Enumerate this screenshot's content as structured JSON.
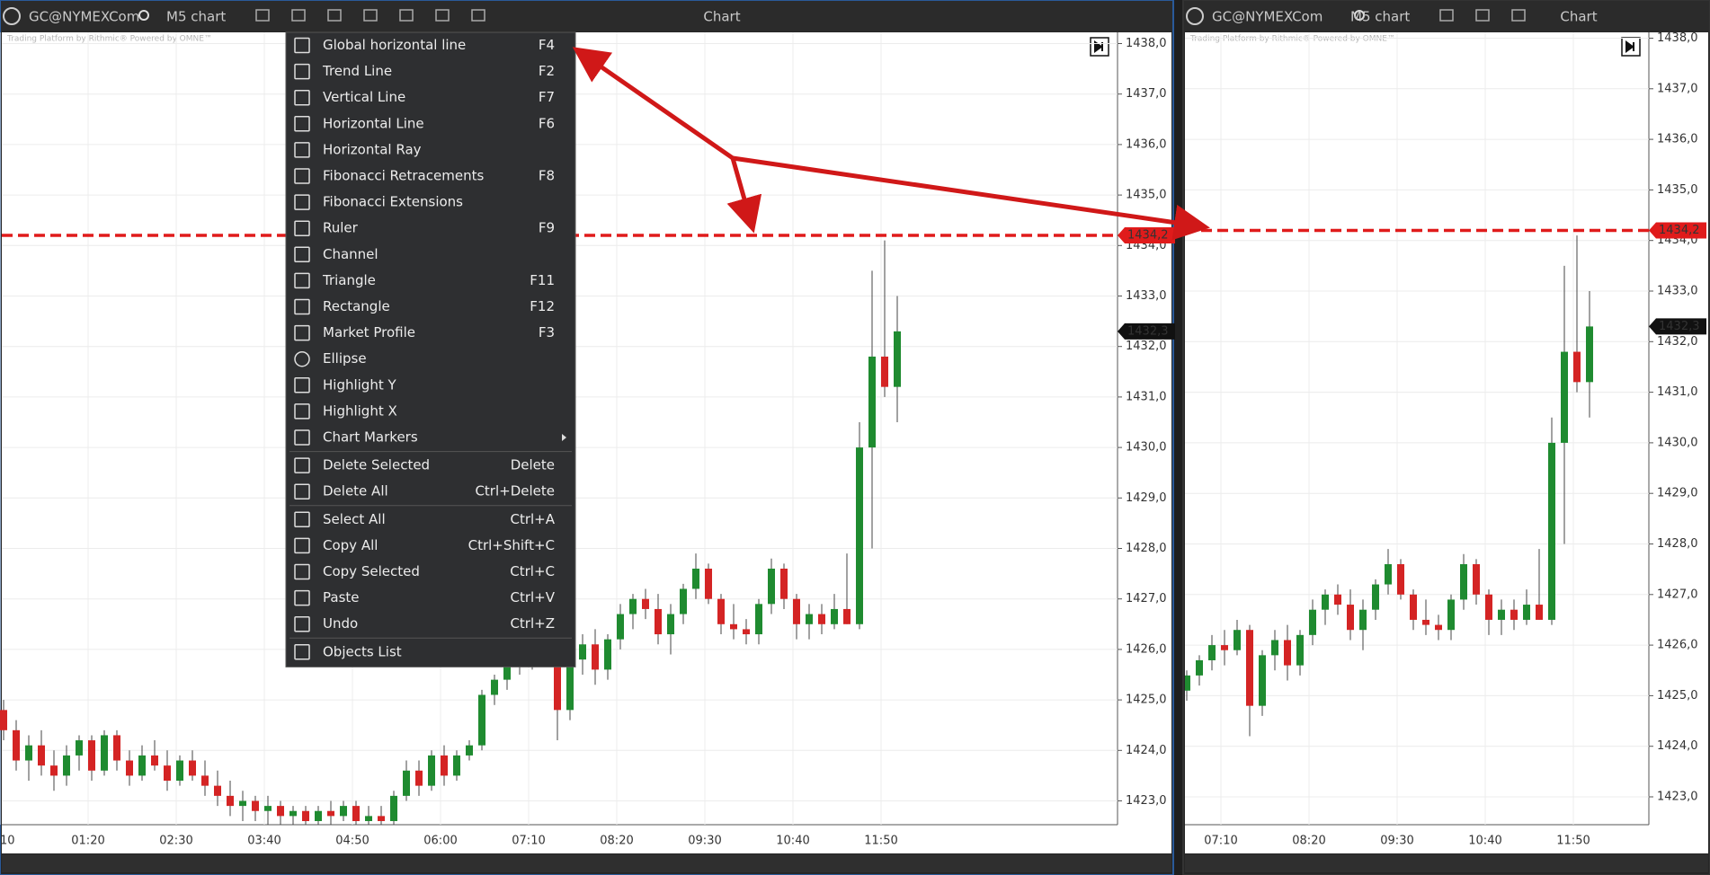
{
  "panels": [
    {
      "toolbar": {
        "symbol": "GC@NYMEXCom",
        "timeframe": "M5 chart",
        "title": "Chart"
      },
      "watermark": "Trading Platform by Rithmic® Powered by OMNE™",
      "xticks": [
        "10",
        "01:20",
        "02:30",
        "03:40",
        "04:50",
        "06:00",
        "07:10",
        "08:20",
        "09:30",
        "10:40",
        "11:50"
      ]
    },
    {
      "toolbar": {
        "symbol": "GC@NYMEXCom",
        "timeframe": "M5 chart",
        "title": "Chart"
      },
      "watermark": "Trading Platform by Rithmic® Powered by OMNE™",
      "xticks": [
        "07:10",
        "08:20",
        "09:30",
        "10:40",
        "11:50"
      ]
    }
  ],
  "chart": {
    "yticks": [
      {
        "value": 1423,
        "label": "1423,0"
      },
      {
        "value": 1424,
        "label": "1424,0"
      },
      {
        "value": 1425,
        "label": "1425,0"
      },
      {
        "value": 1426,
        "label": "1426,0"
      },
      {
        "value": 1427,
        "label": "1427,0"
      },
      {
        "value": 1428,
        "label": "1428,0"
      },
      {
        "value": 1429,
        "label": "1429,0"
      },
      {
        "value": 1430,
        "label": "1430,0"
      },
      {
        "value": 1431,
        "label": "1431,0"
      },
      {
        "value": 1432,
        "label": "1432,0"
      },
      {
        "value": 1433,
        "label": "1433,0"
      },
      {
        "value": 1434,
        "label": "1434,0"
      },
      {
        "value": 1435,
        "label": "1435,0"
      },
      {
        "value": 1436,
        "label": "1436,0"
      },
      {
        "value": 1437,
        "label": "1437,0"
      },
      {
        "value": 1438,
        "label": "1438,0"
      }
    ],
    "hline": {
      "value": 1434.2,
      "label": "1434,2"
    },
    "last_price": {
      "value": 1432.3,
      "label": "1432,3"
    },
    "candles": [
      [
        1424.8,
        1425.0,
        1424.2,
        1424.4
      ],
      [
        1424.4,
        1424.6,
        1423.6,
        1423.8
      ],
      [
        1423.8,
        1424.3,
        1423.4,
        1424.1
      ],
      [
        1424.1,
        1424.4,
        1423.5,
        1423.7
      ],
      [
        1423.7,
        1424.0,
        1423.2,
        1423.5
      ],
      [
        1423.5,
        1424.1,
        1423.3,
        1423.9
      ],
      [
        1423.9,
        1424.3,
        1423.6,
        1424.2
      ],
      [
        1424.2,
        1424.3,
        1423.4,
        1423.6
      ],
      [
        1423.6,
        1424.4,
        1423.5,
        1424.3
      ],
      [
        1424.3,
        1424.4,
        1423.6,
        1423.8
      ],
      [
        1423.8,
        1424.0,
        1423.3,
        1423.5
      ],
      [
        1423.5,
        1424.1,
        1423.4,
        1423.9
      ],
      [
        1423.9,
        1424.2,
        1423.6,
        1423.7
      ],
      [
        1423.7,
        1424.0,
        1423.2,
        1423.4
      ],
      [
        1423.4,
        1423.9,
        1423.3,
        1423.8
      ],
      [
        1423.8,
        1424.0,
        1423.4,
        1423.5
      ],
      [
        1423.5,
        1423.8,
        1423.1,
        1423.3
      ],
      [
        1423.3,
        1423.6,
        1422.9,
        1423.1
      ],
      [
        1423.1,
        1423.4,
        1422.7,
        1422.9
      ],
      [
        1422.9,
        1423.2,
        1422.6,
        1423.0
      ],
      [
        1423.0,
        1423.1,
        1422.6,
        1422.8
      ],
      [
        1422.8,
        1423.1,
        1422.5,
        1422.9
      ],
      [
        1422.9,
        1423.0,
        1422.5,
        1422.7
      ],
      [
        1422.7,
        1422.9,
        1422.4,
        1422.8
      ],
      [
        1422.8,
        1422.9,
        1422.5,
        1422.6
      ],
      [
        1422.6,
        1422.9,
        1422.4,
        1422.8
      ],
      [
        1422.8,
        1423.0,
        1422.5,
        1422.7
      ],
      [
        1422.7,
        1423.0,
        1422.6,
        1422.9
      ],
      [
        1422.9,
        1423.0,
        1422.5,
        1422.6
      ],
      [
        1422.6,
        1422.9,
        1422.4,
        1422.7
      ],
      [
        1422.7,
        1422.9,
        1422.5,
        1422.6
      ],
      [
        1422.6,
        1423.2,
        1422.5,
        1423.1
      ],
      [
        1423.1,
        1423.8,
        1423.0,
        1423.6
      ],
      [
        1423.6,
        1423.8,
        1423.1,
        1423.3
      ],
      [
        1423.3,
        1424.0,
        1423.2,
        1423.9
      ],
      [
        1423.9,
        1424.1,
        1423.3,
        1423.5
      ],
      [
        1423.5,
        1424.0,
        1423.4,
        1423.9
      ],
      [
        1423.9,
        1424.2,
        1423.8,
        1424.1
      ],
      [
        1424.1,
        1425.2,
        1424.0,
        1425.1
      ],
      [
        1425.1,
        1425.5,
        1424.9,
        1425.4
      ],
      [
        1425.4,
        1425.8,
        1425.2,
        1425.7
      ],
      [
        1425.7,
        1426.2,
        1425.5,
        1426.0
      ],
      [
        1426.0,
        1426.3,
        1425.6,
        1425.9
      ],
      [
        1425.9,
        1426.5,
        1425.8,
        1426.3
      ],
      [
        1426.3,
        1426.4,
        1424.2,
        1424.8
      ],
      [
        1424.8,
        1425.9,
        1424.6,
        1425.8
      ],
      [
        1425.8,
        1426.3,
        1425.5,
        1426.1
      ],
      [
        1426.1,
        1426.4,
        1425.3,
        1425.6
      ],
      [
        1425.6,
        1426.3,
        1425.4,
        1426.2
      ],
      [
        1426.2,
        1426.9,
        1426.0,
        1426.7
      ],
      [
        1426.7,
        1427.1,
        1426.4,
        1427.0
      ],
      [
        1427.0,
        1427.2,
        1426.6,
        1426.8
      ],
      [
        1426.8,
        1427.1,
        1426.1,
        1426.3
      ],
      [
        1426.3,
        1426.9,
        1425.9,
        1426.7
      ],
      [
        1426.7,
        1427.3,
        1426.5,
        1427.2
      ],
      [
        1427.2,
        1427.9,
        1427.0,
        1427.6
      ],
      [
        1427.6,
        1427.7,
        1426.9,
        1427.0
      ],
      [
        1427.0,
        1427.1,
        1426.3,
        1426.5
      ],
      [
        1426.5,
        1426.9,
        1426.2,
        1426.4
      ],
      [
        1426.4,
        1426.6,
        1426.1,
        1426.3
      ],
      [
        1426.3,
        1427.0,
        1426.1,
        1426.9
      ],
      [
        1426.9,
        1427.8,
        1426.7,
        1427.6
      ],
      [
        1427.6,
        1427.7,
        1426.8,
        1427.0
      ],
      [
        1427.0,
        1427.1,
        1426.2,
        1426.5
      ],
      [
        1426.5,
        1426.9,
        1426.2,
        1426.7
      ],
      [
        1426.7,
        1426.9,
        1426.3,
        1426.5
      ],
      [
        1426.5,
        1427.1,
        1426.4,
        1426.8
      ],
      [
        1426.8,
        1427.9,
        1426.5,
        1426.5
      ],
      [
        1426.5,
        1430.5,
        1426.4,
        1430.0
      ],
      [
        1430.0,
        1433.5,
        1428.0,
        1431.8
      ],
      [
        1431.8,
        1434.1,
        1431.0,
        1431.2
      ],
      [
        1431.2,
        1433.0,
        1430.5,
        1432.3
      ]
    ]
  },
  "menu": {
    "items": [
      {
        "label": "Global horizontal line",
        "shortcut": "F4"
      },
      {
        "label": "Trend Line",
        "shortcut": "F2"
      },
      {
        "label": "Vertical Line",
        "shortcut": "F7"
      },
      {
        "label": "Horizontal Line",
        "shortcut": "F6"
      },
      {
        "label": "Horizontal Ray"
      },
      {
        "label": "Fibonacci Retracements",
        "shortcut": "F8"
      },
      {
        "label": "Fibonacci Extensions"
      },
      {
        "label": "Ruler",
        "shortcut": "F9"
      },
      {
        "label": "Channel"
      },
      {
        "label": "Triangle",
        "shortcut": "F11"
      },
      {
        "label": "Rectangle",
        "shortcut": "F12"
      },
      {
        "label": "Market Profile",
        "shortcut": "F3"
      },
      {
        "label": "Ellipse"
      },
      {
        "label": "Highlight Y"
      },
      {
        "label": "Highlight X"
      },
      {
        "label": "Chart Markers"
      },
      {
        "label": "Delete Selected",
        "shortcut": "Delete"
      },
      {
        "label": "Delete All",
        "shortcut": "Ctrl+Delete"
      },
      {
        "label": "Select All",
        "shortcut": "Ctrl+A"
      },
      {
        "label": "Copy All",
        "shortcut": "Ctrl+Shift+C"
      },
      {
        "label": "Copy Selected",
        "shortcut": "Ctrl+C"
      },
      {
        "label": "Paste",
        "shortcut": "Ctrl+V"
      },
      {
        "label": "Undo",
        "shortcut": "Ctrl+Z"
      },
      {
        "label": "Objects List"
      }
    ]
  }
}
